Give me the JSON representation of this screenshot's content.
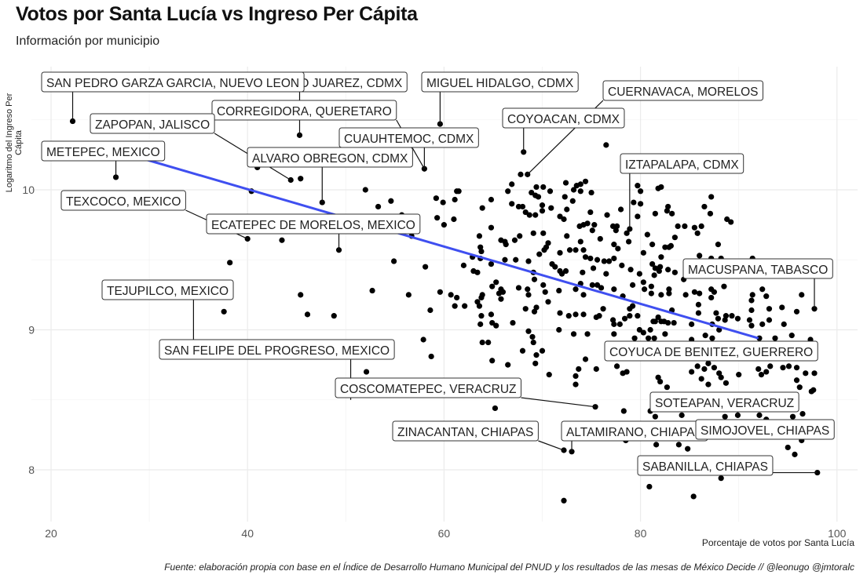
{
  "chart_data": {
    "type": "scatter",
    "title": "Votos por Santa Lucía vs Ingreso Per Cápita",
    "subtitle": "Información por municipio",
    "xlabel": "Porcentaje de votos por Santa Lucía",
    "ylabel": "Logaritmo del Ingreso Per Cápita",
    "caption": "Fuente: elaboración propia con base en el Índice de Desarrollo Humano Municipal del PNUD y los resultados de las mesas de México Decide // @leonugo @jmtoralc",
    "xlim": [
      18,
      101.8
    ],
    "ylim": [
      7.63,
      10.88
    ],
    "xticks": [
      20,
      40,
      60,
      80,
      100
    ],
    "yticks": [
      8,
      9,
      10
    ],
    "grid": true,
    "colors": {
      "points": "#000000",
      "trend": "#3f4ff0",
      "grid": "#ebebeb"
    },
    "trend_line": {
      "x": [
        28,
        92
      ],
      "y": [
        10.25,
        8.94
      ]
    },
    "points": [
      [
        68.1,
        10.27
      ],
      [
        76.5,
        10.32
      ],
      [
        67.8,
        10.11
      ],
      [
        68.5,
        10.11
      ],
      [
        66.9,
        10.04
      ],
      [
        66.5,
        9.99
      ],
      [
        69.4,
        10.02
      ],
      [
        70.1,
        10.02
      ],
      [
        68.9,
        9.98
      ],
      [
        69.3,
        9.96
      ],
      [
        69.6,
        9.95
      ],
      [
        70.8,
        9.99
      ],
      [
        72.4,
        10.05
      ],
      [
        73.5,
        10.03
      ],
      [
        73.9,
        10.04
      ],
      [
        74.4,
        10.06
      ],
      [
        73.2,
        10.0
      ],
      [
        73.9,
        9.99
      ],
      [
        75.0,
        9.98
      ],
      [
        72.3,
        9.95
      ],
      [
        73.1,
        9.92
      ],
      [
        79.7,
        10.03
      ],
      [
        80.0,
        9.99
      ],
      [
        81.8,
        10.01
      ],
      [
        82.1,
        10.02
      ],
      [
        87.2,
        9.95
      ],
      [
        61.5,
        9.99
      ],
      [
        61.3,
        9.99
      ],
      [
        61.1,
        9.93
      ],
      [
        59.2,
        9.94
      ],
      [
        59.9,
        9.91
      ],
      [
        64.8,
        9.93
      ],
      [
        63.9,
        9.87
      ],
      [
        66.9,
        9.9
      ],
      [
        67.6,
        9.88
      ],
      [
        68.0,
        9.88
      ],
      [
        70.0,
        9.89
      ],
      [
        70.9,
        9.87
      ],
      [
        68.3,
        9.84
      ],
      [
        68.7,
        9.82
      ],
      [
        69.3,
        9.82
      ],
      [
        70.0,
        9.85
      ],
      [
        72.5,
        9.86
      ],
      [
        71.8,
        9.81
      ],
      [
        72.2,
        9.79
      ],
      [
        74.9,
        9.84
      ],
      [
        76.6,
        9.82
      ],
      [
        78.0,
        9.86
      ],
      [
        79.3,
        9.91
      ],
      [
        80.0,
        9.9
      ],
      [
        79.7,
        9.81
      ],
      [
        81.5,
        9.83
      ],
      [
        82.7,
        9.85
      ],
      [
        83.2,
        9.83
      ],
      [
        82.8,
        9.88
      ],
      [
        86.5,
        9.88
      ],
      [
        87.1,
        9.83
      ],
      [
        88.8,
        9.79
      ],
      [
        89.2,
        9.77
      ],
      [
        59.3,
        9.8
      ],
      [
        60.0,
        9.75
      ],
      [
        61.0,
        9.79
      ],
      [
        64.8,
        9.73
      ],
      [
        63.6,
        9.67
      ],
      [
        65.8,
        9.64
      ],
      [
        66.2,
        9.63
      ],
      [
        66.3,
        9.61
      ],
      [
        67.2,
        9.64
      ],
      [
        67.7,
        9.67
      ],
      [
        69.1,
        9.69
      ],
      [
        70.1,
        9.69
      ],
      [
        70.6,
        9.62
      ],
      [
        72.5,
        9.67
      ],
      [
        73.9,
        9.63
      ],
      [
        73.8,
        9.74
      ],
      [
        74.2,
        9.75
      ],
      [
        74.6,
        9.76
      ],
      [
        75.3,
        9.75
      ],
      [
        75.1,
        9.71
      ],
      [
        75.9,
        9.65
      ],
      [
        77.2,
        9.74
      ],
      [
        77.5,
        9.71
      ],
      [
        77.6,
        9.74
      ],
      [
        78.6,
        9.69
      ],
      [
        78.9,
        9.72
      ],
      [
        78.8,
        9.63
      ],
      [
        77.3,
        9.61
      ],
      [
        77.7,
        9.58
      ],
      [
        80.7,
        9.68
      ],
      [
        81.2,
        9.61
      ],
      [
        80.3,
        9.55
      ],
      [
        82.1,
        9.52
      ],
      [
        82.9,
        9.59
      ],
      [
        83.1,
        9.6
      ],
      [
        82.5,
        9.59
      ],
      [
        83.5,
        9.66
      ],
      [
        83.8,
        9.74
      ],
      [
        84.5,
        9.74
      ],
      [
        85.5,
        9.73
      ],
      [
        85.8,
        9.69
      ],
      [
        86.2,
        9.74
      ],
      [
        87.9,
        9.61
      ],
      [
        86.0,
        9.53
      ],
      [
        87.2,
        9.51
      ],
      [
        88.2,
        9.51
      ],
      [
        91.4,
        9.51
      ],
      [
        63.7,
        9.59
      ],
      [
        63.8,
        9.56
      ],
      [
        63.7,
        9.51
      ],
      [
        62.9,
        9.52
      ],
      [
        62.0,
        9.46
      ],
      [
        63.0,
        9.42
      ],
      [
        63.4,
        9.41
      ],
      [
        64.8,
        9.47
      ],
      [
        66.2,
        9.5
      ],
      [
        67.3,
        9.5
      ],
      [
        68.6,
        9.49
      ],
      [
        69.7,
        9.54
      ],
      [
        70.2,
        9.57
      ],
      [
        70.4,
        9.59
      ],
      [
        71.8,
        9.55
      ],
      [
        72.8,
        9.57
      ],
      [
        73.4,
        9.57
      ],
      [
        74.2,
        9.57
      ],
      [
        74.4,
        9.52
      ],
      [
        74.9,
        9.51
      ],
      [
        75.6,
        9.5
      ],
      [
        76.3,
        9.49
      ],
      [
        76.8,
        9.49
      ],
      [
        77.3,
        9.51
      ],
      [
        78.1,
        9.46
      ],
      [
        79.0,
        9.43
      ],
      [
        79.9,
        9.4
      ],
      [
        81.2,
        9.47
      ],
      [
        81.5,
        9.44
      ],
      [
        82.0,
        9.45
      ],
      [
        81.9,
        9.42
      ],
      [
        81.4,
        9.39
      ],
      [
        82.8,
        9.43
      ],
      [
        83.5,
        9.41
      ],
      [
        84.4,
        9.36
      ],
      [
        69.1,
        9.41
      ],
      [
        71.0,
        9.47
      ],
      [
        71.3,
        9.45
      ],
      [
        71.8,
        9.42
      ],
      [
        72.0,
        9.4
      ],
      [
        72.4,
        9.42
      ],
      [
        74.1,
        9.41
      ],
      [
        75.2,
        9.44
      ],
      [
        76.5,
        9.4
      ],
      [
        65.3,
        9.34
      ],
      [
        64.9,
        9.31
      ],
      [
        65.8,
        9.29
      ],
      [
        66.0,
        9.27
      ],
      [
        67.6,
        9.3
      ],
      [
        68.5,
        9.29
      ],
      [
        69.2,
        9.36
      ],
      [
        70.1,
        9.32
      ],
      [
        70.3,
        9.27
      ],
      [
        71.7,
        9.28
      ],
      [
        73.4,
        9.29
      ],
      [
        73.9,
        9.33
      ],
      [
        74.2,
        9.25
      ],
      [
        75.1,
        9.32
      ],
      [
        75.6,
        9.32
      ],
      [
        76.0,
        9.3
      ],
      [
        77.3,
        9.29
      ],
      [
        78.2,
        9.24
      ],
      [
        79.2,
        9.32
      ],
      [
        80.3,
        9.34
      ],
      [
        80.4,
        9.29
      ],
      [
        81.1,
        9.31
      ],
      [
        81.1,
        9.26
      ],
      [
        82.9,
        9.29
      ],
      [
        82.9,
        9.26
      ],
      [
        82.1,
        9.25
      ],
      [
        84.6,
        9.25
      ],
      [
        85.5,
        9.27
      ],
      [
        86.0,
        9.26
      ],
      [
        87.2,
        9.29
      ],
      [
        87.5,
        9.27
      ],
      [
        88.5,
        9.31
      ],
      [
        87.2,
        9.23
      ],
      [
        91.4,
        9.25
      ],
      [
        91.3,
        9.21
      ],
      [
        92.4,
        9.29
      ],
      [
        92.8,
        9.24
      ],
      [
        96.4,
        9.25
      ],
      [
        97.7,
        9.15
      ],
      [
        59.6,
        9.27
      ],
      [
        60.7,
        9.25
      ],
      [
        61.3,
        9.23
      ],
      [
        61.1,
        9.17
      ],
      [
        62.1,
        9.17
      ],
      [
        63.4,
        9.2
      ],
      [
        63.8,
        9.23
      ],
      [
        63.9,
        9.25
      ],
      [
        63.6,
        9.17
      ],
      [
        63.8,
        9.1
      ],
      [
        63.7,
        9.04
      ],
      [
        64.8,
        9.11
      ],
      [
        64.9,
        9.05
      ],
      [
        65.3,
        9.03
      ],
      [
        67.0,
        9.05
      ],
      [
        65.8,
        9.22
      ],
      [
        65.6,
        9.26
      ],
      [
        68.3,
        9.15
      ],
      [
        68.6,
        9.25
      ],
      [
        69.2,
        9.13
      ],
      [
        69.4,
        9.16
      ],
      [
        70.6,
        9.2
      ],
      [
        71.8,
        9.12
      ],
      [
        72.7,
        9.1
      ],
      [
        73.4,
        9.11
      ],
      [
        74.2,
        9.11
      ],
      [
        75.5,
        9.09
      ],
      [
        75.8,
        9.1
      ],
      [
        76.2,
        9.15
      ],
      [
        77.2,
        9.07
      ],
      [
        77.3,
        9.04
      ],
      [
        77.9,
        9.04
      ],
      [
        78.4,
        9.08
      ],
      [
        78.9,
        9.1
      ],
      [
        78.9,
        9.15
      ],
      [
        79.2,
        9.17
      ],
      [
        79.7,
        9.1
      ],
      [
        79.9,
        9.0
      ],
      [
        80.3,
        8.98
      ],
      [
        81.0,
        9.0
      ],
      [
        81.3,
        9.06
      ],
      [
        81.5,
        9.06
      ],
      [
        81.8,
        9.09
      ],
      [
        82.1,
        9.06
      ],
      [
        82.4,
        9.06
      ],
      [
        82.8,
        9.05
      ],
      [
        83.2,
        9.14
      ],
      [
        83.4,
        9.05
      ],
      [
        85.2,
        9.04
      ],
      [
        85.9,
        9.12
      ],
      [
        85.9,
        9.18
      ],
      [
        87.3,
        9.04
      ],
      [
        87.7,
        9.12
      ],
      [
        87.9,
        9.08
      ],
      [
        88.6,
        9.07
      ],
      [
        88.0,
        9.0
      ],
      [
        88.7,
        9.1
      ],
      [
        89.3,
        9.1
      ],
      [
        89.9,
        9.08
      ],
      [
        91.1,
        9.07
      ],
      [
        91.3,
        9.03
      ],
      [
        91.3,
        9.14
      ],
      [
        92.4,
        9.04
      ],
      [
        93.1,
        9.07
      ],
      [
        93.1,
        9.15
      ],
      [
        94.4,
        9.16
      ],
      [
        94.6,
        9.04
      ],
      [
        95.4,
        8.96
      ],
      [
        95.9,
        9.13
      ],
      [
        97.3,
        8.93
      ],
      [
        58.7,
        8.81
      ],
      [
        63.9,
        8.91
      ],
      [
        64.5,
        8.91
      ],
      [
        64.9,
        8.78
      ],
      [
        66.5,
        8.75
      ],
      [
        68.0,
        8.85
      ],
      [
        68.6,
        8.99
      ],
      [
        69.0,
        8.95
      ],
      [
        69.1,
        8.91
      ],
      [
        69.4,
        8.82
      ],
      [
        70.0,
        8.85
      ],
      [
        71.7,
        9.0
      ],
      [
        73.2,
        8.97
      ],
      [
        74.6,
        8.97
      ],
      [
        75.5,
        8.72
      ],
      [
        77.3,
        8.97
      ],
      [
        79.4,
        8.94
      ],
      [
        80.8,
        8.94
      ],
      [
        81.4,
        8.94
      ],
      [
        82.5,
        8.97
      ],
      [
        85.2,
        8.93
      ],
      [
        86.6,
        8.96
      ],
      [
        87.3,
        8.94
      ],
      [
        92.1,
        8.94
      ],
      [
        93.7,
        8.94
      ],
      [
        69.3,
        8.76
      ],
      [
        70.7,
        8.68
      ],
      [
        73.7,
        8.72
      ],
      [
        73.4,
        8.67
      ],
      [
        73.4,
        8.61
      ],
      [
        74.4,
        8.79
      ],
      [
        77.6,
        8.74
      ],
      [
        78.2,
        8.69
      ],
      [
        78.6,
        8.7
      ],
      [
        81.8,
        8.66
      ],
      [
        82.0,
        8.63
      ],
      [
        82.7,
        8.59
      ],
      [
        85.2,
        8.7
      ],
      [
        85.8,
        8.74
      ],
      [
        86.5,
        8.72
      ],
      [
        86.9,
        8.76
      ],
      [
        87.5,
        8.73
      ],
      [
        88.0,
        8.69
      ],
      [
        88.2,
        8.66
      ],
      [
        88.7,
        8.62
      ],
      [
        90.0,
        8.68
      ],
      [
        92.0,
        8.72
      ],
      [
        92.3,
        8.68
      ],
      [
        92.8,
        8.7
      ],
      [
        93.2,
        8.74
      ],
      [
        94.5,
        8.73
      ],
      [
        95.1,
        8.74
      ],
      [
        95.9,
        8.73
      ],
      [
        96.8,
        8.69
      ],
      [
        97.7,
        8.69
      ],
      [
        95.9,
        8.64
      ],
      [
        96.2,
        8.59
      ],
      [
        97.6,
        8.57
      ],
      [
        86.9,
        8.61
      ],
      [
        86.2,
        8.65
      ],
      [
        22.2,
        10.49
      ],
      [
        26.6,
        10.09
      ],
      [
        45.3,
        10.39
      ],
      [
        41.0,
        10.16
      ],
      [
        44.4,
        10.07
      ],
      [
        45.4,
        10.08
      ],
      [
        40.4,
        9.99
      ],
      [
        47.6,
        9.91
      ],
      [
        52.0,
        10.0
      ],
      [
        58.0,
        10.15
      ],
      [
        53.3,
        9.88
      ],
      [
        54.6,
        9.92
      ],
      [
        56.7,
        9.67
      ],
      [
        55.7,
        9.82
      ],
      [
        40.0,
        9.65
      ],
      [
        43.5,
        9.64
      ],
      [
        49.3,
        9.57
      ],
      [
        38.2,
        9.48
      ],
      [
        54.9,
        9.49
      ],
      [
        58.1,
        9.45
      ],
      [
        45.4,
        9.25
      ],
      [
        52.7,
        9.28
      ],
      [
        56.4,
        9.25
      ],
      [
        58.6,
        9.14
      ],
      [
        37.6,
        9.13
      ],
      [
        46.1,
        9.11
      ],
      [
        48.8,
        9.1
      ],
      [
        57.9,
        8.93
      ],
      [
        52.1,
        8.7
      ],
      [
        59.6,
        10.47
      ],
      [
        75.4,
        8.45
      ],
      [
        65.2,
        8.44
      ],
      [
        78.3,
        8.42
      ],
      [
        81.0,
        8.42
      ],
      [
        81.5,
        8.38
      ],
      [
        84.2,
        8.39
      ],
      [
        88.6,
        8.38
      ],
      [
        89.9,
        8.39
      ],
      [
        92.1,
        8.39
      ],
      [
        92.8,
        8.36
      ],
      [
        95.5,
        8.38
      ],
      [
        96.5,
        8.4
      ],
      [
        78.5,
        8.21
      ],
      [
        81.6,
        8.18
      ],
      [
        83.9,
        8.18
      ],
      [
        84.8,
        8.15
      ],
      [
        72.2,
        8.14
      ],
      [
        73.0,
        8.13
      ],
      [
        95.0,
        8.16
      ],
      [
        96.4,
        8.21
      ],
      [
        95.7,
        8.11
      ],
      [
        98.0,
        7.98
      ],
      [
        88.2,
        7.94
      ],
      [
        80.9,
        7.88
      ],
      [
        85.4,
        7.81
      ],
      [
        72.2,
        7.78
      ],
      [
        97.4,
        8.56
      ]
    ],
    "annotations": [
      {
        "label": "BENITO JUAREZ, CDMX",
        "x": 45.3,
        "y": 10.39
      },
      {
        "label": "SAN PEDRO GARZA GARCIA, NUEVO LEON",
        "x": 22.2,
        "y": 10.49
      },
      {
        "label": "MIGUEL HIDALGO, CDMX",
        "x": 59.6,
        "y": 10.47
      },
      {
        "label": "CUERNAVACA, MORELOS",
        "x": 68.5,
        "y": 10.11
      },
      {
        "label": "CORREGIDORA, QUERETARO",
        "x": 58.0,
        "y": 10.15
      },
      {
        "label": "ZAPOPAN, JALISCO",
        "x": 44.4,
        "y": 10.07
      },
      {
        "label": "COYOACAN, CDMX",
        "x": 68.1,
        "y": 10.27
      },
      {
        "label": "CUAUHTEMOC, CDMX",
        "x": 58.0,
        "y": 10.15
      },
      {
        "label": "METEPEC, MEXICO",
        "x": 26.6,
        "y": 10.09
      },
      {
        "label": "ALVARO OBREGON, CDMX",
        "x": 47.6,
        "y": 9.91
      },
      {
        "label": "IZTAPALAPA, CDMX",
        "x": 78.9,
        "y": 9.72
      },
      {
        "label": "TEXCOCO, MEXICO",
        "x": 40.0,
        "y": 9.65
      },
      {
        "label": "ECATEPEC DE MORELOS, MEXICO",
        "x": 49.3,
        "y": 9.57
      },
      {
        "label": "MACUSPANA, TABASCO",
        "x": 97.7,
        "y": 9.15
      },
      {
        "label": "TEJUPILCO, MEXICO",
        "x": 34.5,
        "y": 8.9
      },
      {
        "label": "SAN FELIPE DEL PROGRESO, MEXICO",
        "x": 50.5,
        "y": 8.5
      },
      {
        "label": "COYUCA DE BENITEZ, GUERRERO",
        "x": 92.1,
        "y": 8.94
      },
      {
        "label": "COSCOMATEPEC, VERACRUZ",
        "x": 75.4,
        "y": 8.45
      },
      {
        "label": "SOTEAPAN, VERACRUZ",
        "x": 89.9,
        "y": 8.39
      },
      {
        "label": "ZINACANTAN, CHIAPAS",
        "x": 72.2,
        "y": 8.14
      },
      {
        "label": "ALTAMIRANO, CHIAPAS",
        "x": 73.0,
        "y": 8.13
      },
      {
        "label": "SIMOJOVEL, CHIAPAS",
        "x": 90.5,
        "y": 8.3
      },
      {
        "label": "SABANILLA, CHIAPAS",
        "x": 98.0,
        "y": 7.98
      }
    ]
  }
}
